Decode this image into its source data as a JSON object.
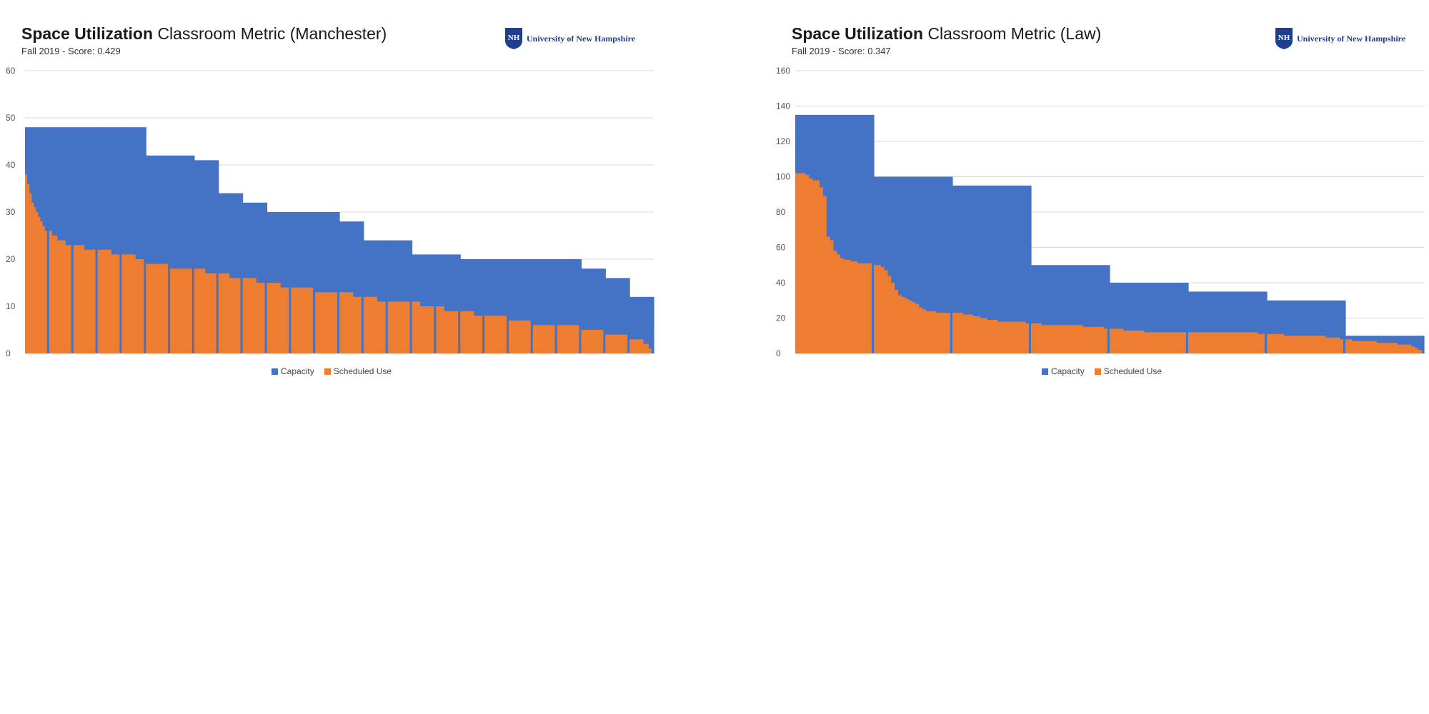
{
  "colors": {
    "capacity": "#4472C4",
    "scheduled": "#ED7D31",
    "grid": "#d9d9d9",
    "logo": "#1e3f8e"
  },
  "logo": {
    "text": "University of New Hampshire",
    "mark": "UNH shield"
  },
  "chart_data": [
    {
      "type": "area",
      "title_bold": "Space Utilization",
      "title_rest": "Classroom Metric (Manchester)",
      "subtitle": "Fall 2019 - Score: 0.429",
      "ylim": [
        0,
        60
      ],
      "yticks": [
        0,
        10,
        20,
        30,
        40,
        50,
        60
      ],
      "grid": true,
      "legend_position": "bottom-center",
      "series": [
        {
          "name": "Capacity",
          "rooms": [
            48,
            48,
            48,
            48,
            48,
            42,
            42,
            41,
            34,
            32,
            30,
            30,
            30,
            28,
            24,
            24,
            21,
            21,
            20,
            20,
            20,
            20,
            20,
            18,
            16,
            12
          ]
        },
        {
          "name": "Scheduled Use",
          "rooms": [
            [
              38,
              36,
              34,
              32,
              31,
              30,
              29,
              28,
              27,
              26
            ],
            [
              26,
              25,
              25,
              24,
              24,
              24,
              23,
              23
            ],
            [
              23,
              23,
              23,
              23,
              22,
              22,
              22,
              22
            ],
            [
              22,
              22,
              22,
              22,
              22,
              21,
              21,
              21
            ],
            [
              21,
              21,
              21,
              21,
              21,
              20,
              20,
              20
            ],
            [
              19,
              19,
              19,
              19,
              19,
              19,
              19,
              19
            ],
            [
              18,
              18,
              18,
              18,
              18,
              18,
              18,
              18
            ],
            [
              18,
              18,
              18,
              18,
              17,
              17,
              17,
              17
            ],
            [
              17,
              17,
              17,
              17,
              16,
              16,
              16,
              16
            ],
            [
              16,
              16,
              16,
              16,
              16,
              15,
              15,
              15
            ],
            [
              15,
              15,
              15,
              15,
              15,
              14,
              14,
              14
            ],
            [
              14,
              14,
              14,
              14,
              14,
              14,
              14,
              14
            ],
            [
              13,
              13,
              13,
              13,
              13,
              13,
              13,
              13
            ],
            [
              13,
              13,
              13,
              13,
              13,
              12,
              12,
              12
            ],
            [
              12,
              12,
              12,
              12,
              12,
              11,
              11,
              11
            ],
            [
              11,
              11,
              11,
              11,
              11,
              11,
              11,
              11
            ],
            [
              11,
              11,
              11,
              10,
              10,
              10,
              10,
              10
            ],
            [
              10,
              10,
              10,
              9,
              9,
              9,
              9,
              9
            ],
            [
              9,
              9,
              9,
              9,
              9,
              8,
              8,
              8
            ],
            [
              8,
              8,
              8,
              8,
              8,
              8,
              8,
              8
            ],
            [
              7,
              7,
              7,
              7,
              7,
              7,
              7,
              7
            ],
            [
              6,
              6,
              6,
              6,
              6,
              6,
              6,
              6
            ],
            [
              6,
              6,
              6,
              6,
              6,
              6,
              6,
              6
            ],
            [
              5,
              5,
              5,
              5,
              5,
              5,
              5,
              5
            ],
            [
              4,
              4,
              4,
              4,
              4,
              4,
              4,
              4
            ],
            [
              3,
              3,
              3,
              3,
              3,
              2,
              2,
              1
            ]
          ]
        }
      ]
    },
    {
      "type": "area",
      "title_bold": "Space Utilization",
      "title_rest": "Classroom Metric (Law)",
      "subtitle": "Fall 2019 - Score: 0.347",
      "ylim": [
        0,
        160
      ],
      "yticks": [
        0,
        20,
        40,
        60,
        80,
        100,
        120,
        140,
        160
      ],
      "grid": true,
      "legend_position": "bottom-center",
      "series": [
        {
          "name": "Capacity",
          "rooms": [
            135,
            100,
            95,
            50,
            40,
            35,
            30,
            10
          ]
        },
        {
          "name": "Scheduled Use",
          "rooms": [
            [
              102,
              102,
              102,
              101,
              99,
              98,
              98,
              94,
              89,
              66,
              64,
              58,
              56,
              54,
              53,
              53,
              52,
              52,
              51,
              51,
              51,
              51
            ],
            [
              50,
              50,
              49,
              47,
              44,
              40,
              36,
              33,
              32,
              31,
              30,
              29,
              28,
              26,
              25,
              24,
              24,
              24,
              23,
              23,
              23,
              23
            ],
            [
              23,
              23,
              23,
              22,
              22,
              22,
              21,
              21,
              20,
              20,
              19,
              19,
              19,
              18,
              18,
              18,
              18,
              18,
              18,
              18,
              18,
              17
            ],
            [
              17,
              17,
              17,
              16,
              16,
              16,
              16,
              16,
              16,
              16,
              16,
              16,
              16,
              16,
              16,
              15,
              15,
              15,
              15,
              15,
              15,
              14
            ],
            [
              14,
              14,
              14,
              14,
              13,
              13,
              13,
              13,
              13,
              13,
              12,
              12,
              12,
              12,
              12,
              12,
              12,
              12,
              12,
              12,
              12,
              12
            ],
            [
              12,
              12,
              12,
              12,
              12,
              12,
              12,
              12,
              12,
              12,
              12,
              12,
              12,
              12,
              12,
              12,
              12,
              12,
              12,
              12,
              11,
              11
            ],
            [
              11,
              11,
              11,
              11,
              11,
              10,
              10,
              10,
              10,
              10,
              10,
              10,
              10,
              10,
              10,
              10,
              10,
              9,
              9,
              9,
              9,
              8
            ],
            [
              8,
              8,
              7,
              7,
              7,
              7,
              7,
              7,
              7,
              6,
              6,
              6,
              6,
              6,
              6,
              5,
              5,
              5,
              5,
              4,
              3,
              2
            ]
          ]
        }
      ]
    }
  ]
}
